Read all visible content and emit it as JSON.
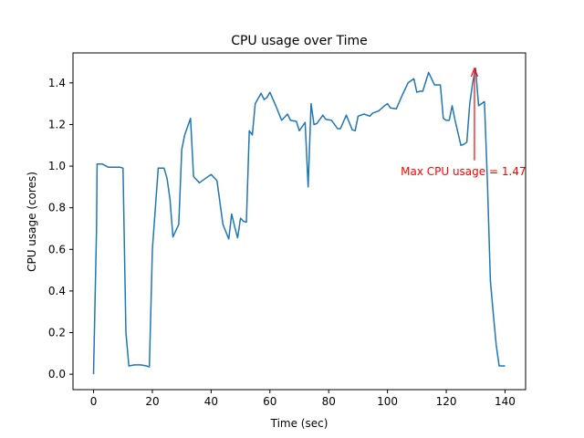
{
  "chart_data": {
    "type": "line",
    "title": "CPU usage over Time",
    "xlabel": "Time (sec)",
    "ylabel": "CPU usage (cores)",
    "xlim": [
      -7,
      147
    ],
    "ylim": [
      -0.074,
      1.544
    ],
    "xticks": [
      0,
      20,
      40,
      60,
      80,
      100,
      120,
      140
    ],
    "yticks": [
      0.0,
      0.2,
      0.4,
      0.6,
      0.8,
      1.0,
      1.2,
      1.4
    ],
    "grid": false,
    "series": [
      {
        "color": "#1f77b4",
        "x": [
          0,
          1,
          1.2,
          3,
          5,
          7,
          9,
          10,
          11,
          12,
          14,
          16,
          18,
          19,
          20,
          22,
          24,
          25,
          26,
          27,
          28,
          29,
          30,
          31,
          32,
          33,
          34,
          36,
          38,
          40,
          41,
          42,
          44,
          46,
          47,
          48,
          49,
          50,
          51,
          52,
          53,
          54,
          55,
          57,
          58,
          59,
          60,
          62,
          64,
          66,
          67,
          69,
          70,
          72,
          73,
          74,
          75,
          76,
          78,
          79,
          81,
          83,
          84,
          86,
          88,
          89,
          90,
          92,
          94,
          95,
          97,
          99,
          100,
          101,
          103,
          105,
          107,
          109,
          110,
          111,
          112,
          114,
          116,
          118,
          119,
          120,
          121,
          122,
          123,
          124,
          125,
          126,
          127,
          128,
          129,
          130,
          131,
          132,
          133,
          134,
          135,
          136,
          137,
          138,
          139,
          140
        ],
        "y": [
          0.0,
          0.7,
          1.01,
          1.01,
          0.995,
          0.995,
          0.995,
          0.99,
          0.2,
          0.04,
          0.045,
          0.045,
          0.04,
          0.035,
          0.6,
          0.99,
          0.99,
          0.94,
          0.84,
          0.66,
          0.69,
          0.72,
          1.08,
          1.15,
          1.19,
          1.23,
          0.95,
          0.92,
          0.94,
          0.96,
          0.945,
          0.93,
          0.72,
          0.65,
          0.77,
          0.71,
          0.655,
          0.75,
          0.735,
          0.73,
          1.17,
          1.15,
          1.3,
          1.35,
          1.32,
          1.33,
          1.355,
          1.29,
          1.22,
          1.25,
          1.22,
          1.215,
          1.17,
          1.21,
          0.9,
          1.3,
          1.2,
          1.205,
          1.245,
          1.225,
          1.22,
          1.18,
          1.18,
          1.245,
          1.175,
          1.17,
          1.24,
          1.25,
          1.24,
          1.255,
          1.265,
          1.29,
          1.3,
          1.28,
          1.275,
          1.34,
          1.4,
          1.42,
          1.355,
          1.36,
          1.36,
          1.45,
          1.39,
          1.39,
          1.23,
          1.22,
          1.22,
          1.29,
          1.22,
          1.16,
          1.1,
          1.105,
          1.115,
          1.3,
          1.4,
          1.47,
          1.29,
          1.3,
          1.31,
          0.93,
          0.45,
          0.29,
          0.14,
          0.04,
          0.04,
          0.04
        ]
      }
    ],
    "annotations": [
      {
        "text": "Max CPU usage = 1.47",
        "color": "#ff0000",
        "point": [
          129.6,
          1.47
        ],
        "text_position": [
          104.5,
          0.975
        ]
      }
    ]
  }
}
